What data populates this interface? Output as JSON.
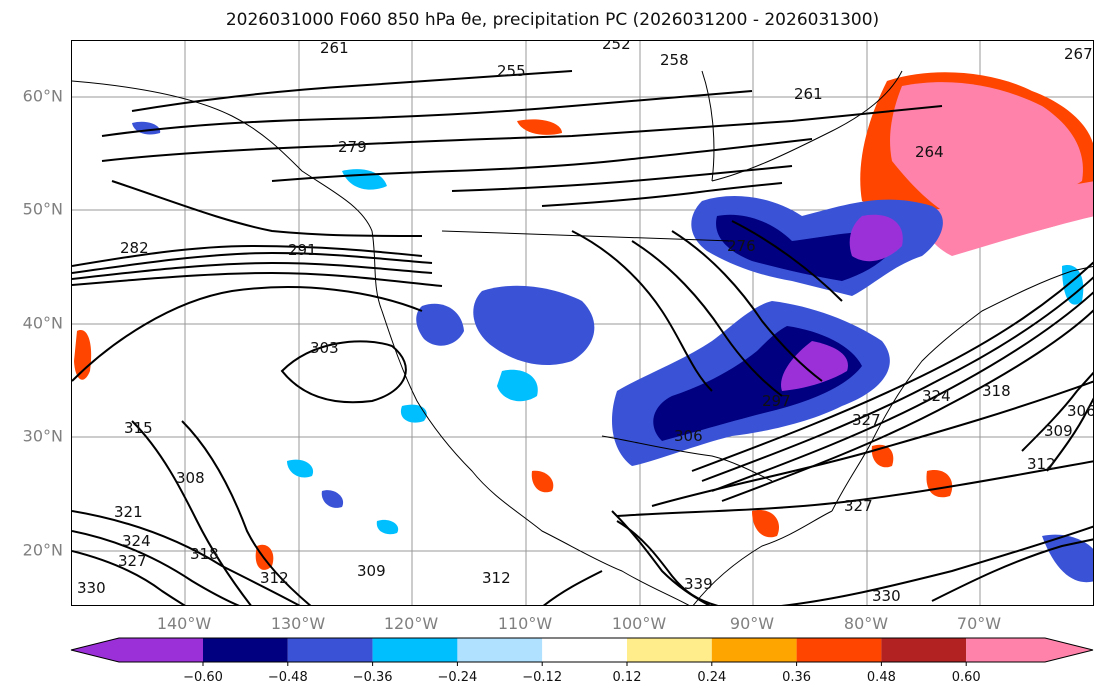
{
  "title": "2026031000 F060 850 hPa θe, precipitation PC (2026031200 - 2026031300)",
  "lat_labels": [
    "60°N",
    "50°N",
    "40°N",
    "30°N",
    "20°N"
  ],
  "lon_labels": [
    "140°W",
    "130°W",
    "120°W",
    "110°W",
    "100°W",
    "90°W",
    "80°W",
    "70°W"
  ],
  "colorbar": {
    "tick_labels": [
      "−0.60",
      "−0.48",
      "−0.36",
      "−0.24",
      "−0.12",
      "0.12",
      "0.24",
      "0.36",
      "0.48",
      "0.60"
    ],
    "colors": [
      "#9b30d9",
      "#000080",
      "#3a53d6",
      "#00bfff",
      "#b0e2ff",
      "#ffffff",
      "#ffec8b",
      "#ffa500",
      "#ff4500",
      "#b22222",
      "#ff82ab"
    ]
  },
  "contour_labels": [
    "261",
    "258",
    "252",
    "255",
    "261",
    "264",
    "267",
    "279",
    "282",
    "291",
    "276",
    "303",
    "315",
    "308",
    "321",
    "324",
    "327",
    "330",
    "318",
    "312",
    "309",
    "312",
    "306",
    "297",
    "327",
    "324",
    "318",
    "312",
    "309",
    "306",
    "327",
    "330",
    "339"
  ]
}
